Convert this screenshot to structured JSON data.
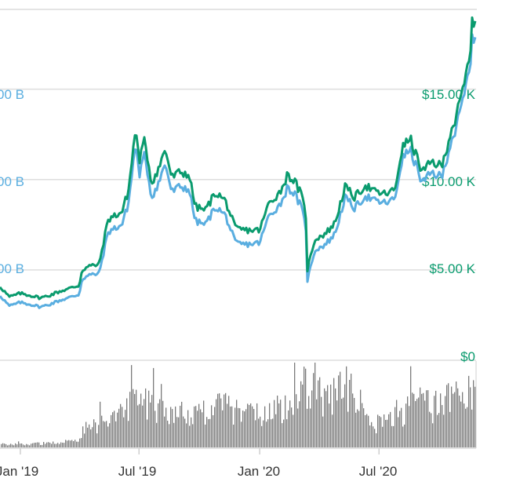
{
  "colors": {
    "price": "#0a9b6e",
    "market_cap": "#5aaee0",
    "volume": "#7b7b7b",
    "grid": "#dedede",
    "axis_text": "#333333",
    "frame": "#d9d9d9"
  },
  "chart_data": {
    "type": "line",
    "title": "",
    "x_labels": [
      "Jan '19",
      "Jul '19",
      "Jan '20",
      "Jul '20"
    ],
    "x_label_dates": [
      "2019-01-01",
      "2019-07-01",
      "2020-01-01",
      "2020-07-01"
    ],
    "xlim": [
      "2018-12-01",
      "2020-11-26"
    ],
    "grid": true,
    "left_axis": {
      "labels": [
        "00 B",
        "00 B",
        "00 B"
      ],
      "values_billions": [
        100,
        200,
        300
      ],
      "color": "market_cap"
    },
    "right_axis": {
      "labels": [
        "$0",
        "$5.00 K",
        "$10.00 K",
        "$15.00 K"
      ],
      "values": [
        0,
        5000,
        10000,
        15000
      ],
      "ylim": [
        0,
        19500
      ],
      "color": "price"
    },
    "series": [
      {
        "key": "price",
        "axis": "right",
        "x": [
          "2018-12-01",
          "2018-12-15",
          "2019-01-01",
          "2019-01-15",
          "2019-02-01",
          "2019-02-15",
          "2019-03-01",
          "2019-03-15",
          "2019-04-01",
          "2019-04-05",
          "2019-04-15",
          "2019-05-01",
          "2019-05-15",
          "2019-05-25",
          "2019-06-05",
          "2019-06-15",
          "2019-06-26",
          "2019-07-01",
          "2019-07-10",
          "2019-07-20",
          "2019-08-01",
          "2019-08-10",
          "2019-08-20",
          "2019-09-01",
          "2019-09-15",
          "2019-09-25",
          "2019-10-10",
          "2019-10-26",
          "2019-11-10",
          "2019-11-25",
          "2019-12-10",
          "2020-01-01",
          "2020-01-15",
          "2020-02-01",
          "2020-02-13",
          "2020-02-25",
          "2020-03-05",
          "2020-03-12",
          "2020-03-13",
          "2020-03-25",
          "2020-04-10",
          "2020-04-25",
          "2020-05-10",
          "2020-05-25",
          "2020-06-10",
          "2020-06-25",
          "2020-07-10",
          "2020-07-25",
          "2020-08-05",
          "2020-08-17",
          "2020-08-25",
          "2020-09-05",
          "2020-09-20",
          "2020-10-05",
          "2020-10-20",
          "2020-10-25",
          "2020-11-05",
          "2020-11-15",
          "2020-11-20",
          "2020-11-26"
        ],
        "y": [
          4100,
          3500,
          3700,
          3600,
          3450,
          3600,
          3800,
          3950,
          4150,
          5000,
          5200,
          5300,
          7800,
          8000,
          8200,
          9400,
          12900,
          11000,
          12200,
          9800,
          10700,
          11700,
          10100,
          10400,
          10300,
          8500,
          8300,
          9300,
          8800,
          7300,
          7200,
          7200,
          8700,
          9300,
          10300,
          9800,
          9100,
          7900,
          4900,
          6700,
          7000,
          7600,
          9600,
          9000,
          9700,
          9300,
          9200,
          9400,
          11700,
          12300,
          11500,
          10400,
          11000,
          10700,
          12900,
          13200,
          14800,
          16500,
          18500,
          19000
        ]
      },
      {
        "key": "market_cap",
        "axis": "right",
        "x": [
          "2018-12-01",
          "2018-12-15",
          "2019-01-01",
          "2019-01-15",
          "2019-02-01",
          "2019-02-15",
          "2019-03-01",
          "2019-03-15",
          "2019-04-01",
          "2019-04-05",
          "2019-04-15",
          "2019-05-01",
          "2019-05-15",
          "2019-05-25",
          "2019-06-05",
          "2019-06-15",
          "2019-06-26",
          "2019-07-01",
          "2019-07-10",
          "2019-07-20",
          "2019-08-01",
          "2019-08-10",
          "2019-08-20",
          "2019-09-01",
          "2019-09-15",
          "2019-09-25",
          "2019-10-10",
          "2019-10-26",
          "2019-11-10",
          "2019-11-25",
          "2019-12-10",
          "2020-01-01",
          "2020-01-15",
          "2020-02-01",
          "2020-02-13",
          "2020-02-25",
          "2020-03-05",
          "2020-03-12",
          "2020-03-13",
          "2020-03-25",
          "2020-04-10",
          "2020-04-25",
          "2020-05-10",
          "2020-05-25",
          "2020-06-10",
          "2020-06-25",
          "2020-07-10",
          "2020-07-25",
          "2020-08-05",
          "2020-08-17",
          "2020-08-25",
          "2020-09-05",
          "2020-09-20",
          "2020-10-05",
          "2020-10-20",
          "2020-10-25",
          "2020-11-05",
          "2020-11-15",
          "2020-11-20",
          "2020-11-26"
        ],
        "y": [
          3600,
          3000,
          3200,
          3100,
          2950,
          3100,
          3300,
          3450,
          3650,
          4500,
          4700,
          4800,
          7100,
          7300,
          7500,
          8700,
          12100,
          10200,
          11400,
          9000,
          9900,
          10900,
          9300,
          9600,
          9500,
          7700,
          7500,
          8500,
          8000,
          6500,
          6400,
          6500,
          8000,
          8600,
          9600,
          9100,
          8400,
          7200,
          4300,
          6100,
          6400,
          7000,
          9000,
          8400,
          9100,
          8800,
          8700,
          8900,
          11100,
          11700,
          10900,
          9800,
          10400,
          10100,
          12300,
          12600,
          14200,
          15900,
          17600,
          18100
        ]
      },
      {
        "key": "volume",
        "type": "bar",
        "x": [
          "2018-12-01",
          "2019-01-01",
          "2019-02-01",
          "2019-03-01",
          "2019-04-01",
          "2019-04-05",
          "2019-05-01",
          "2019-05-15",
          "2019-06-01",
          "2019-06-26",
          "2019-07-15",
          "2019-08-01",
          "2019-09-01",
          "2019-10-01",
          "2019-10-26",
          "2019-11-15",
          "2019-12-15",
          "2020-01-15",
          "2020-02-15",
          "2020-03-12",
          "2020-03-25",
          "2020-04-15",
          "2020-05-10",
          "2020-06-01",
          "2020-06-25",
          "2020-07-15",
          "2020-08-05",
          "2020-08-25",
          "2020-09-20",
          "2020-10-20",
          "2020-11-05",
          "2020-11-26"
        ],
        "y": [
          4,
          4,
          5,
          6,
          9,
          25,
          28,
          35,
          45,
          60,
          55,
          48,
          42,
          40,
          55,
          48,
          40,
          44,
          55,
          78,
          72,
          60,
          75,
          55,
          30,
          35,
          42,
          58,
          50,
          65,
          72,
          85
        ]
      }
    ]
  }
}
